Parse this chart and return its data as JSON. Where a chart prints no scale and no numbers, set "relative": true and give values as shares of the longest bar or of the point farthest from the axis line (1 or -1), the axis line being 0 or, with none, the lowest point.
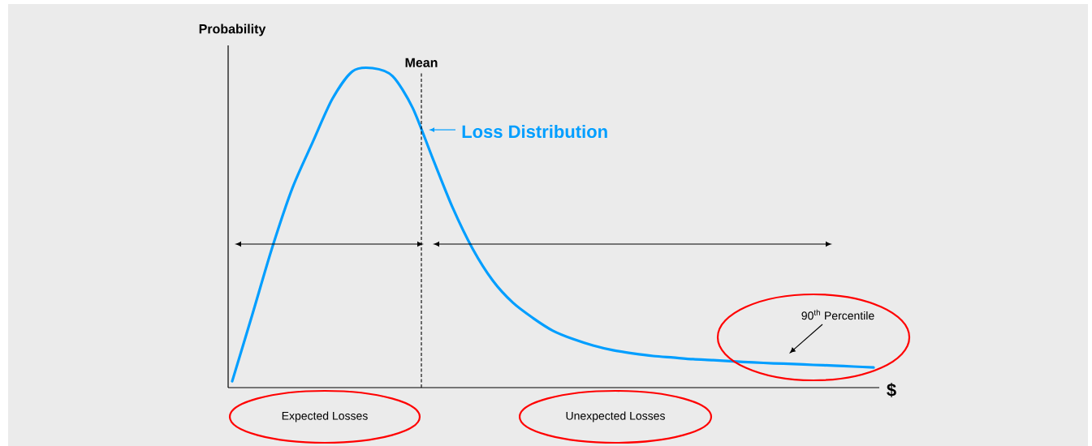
{
  "chart_data": {
    "type": "line",
    "relative": true,
    "ylabel": "Probability",
    "xlabel": "$",
    "marker": "none",
    "line_style": "solid",
    "categories": [
      null,
      null,
      null,
      null,
      null,
      null,
      null,
      null,
      null,
      null,
      null,
      null,
      null,
      null,
      null,
      null,
      null,
      null,
      null,
      null,
      null,
      null,
      null,
      null,
      null,
      null,
      null,
      null,
      null,
      null,
      null,
      null,
      null
    ],
    "series": [
      {
        "name": "Loss Distribution",
        "color": "#009eff",
        "values": [
          0.02,
          0.228,
          0.439,
          0.624,
          0.766,
          0.904,
          0.99,
          1.0,
          0.975,
          0.876,
          0.718,
          0.563,
          0.434,
          0.335,
          0.266,
          0.218,
          0.178,
          0.152,
          0.132,
          0.117,
          0.107,
          0.099,
          0.094,
          0.089,
          0.086,
          0.082,
          0.079,
          0.076,
          0.074,
          0.071,
          0.069,
          0.066,
          0.063
        ]
      }
    ],
    "annotations": [
      "Mean",
      "Expected Losses",
      "Unexpected Losses",
      "90$^{th}$ Percentile"
    ]
  }
}
